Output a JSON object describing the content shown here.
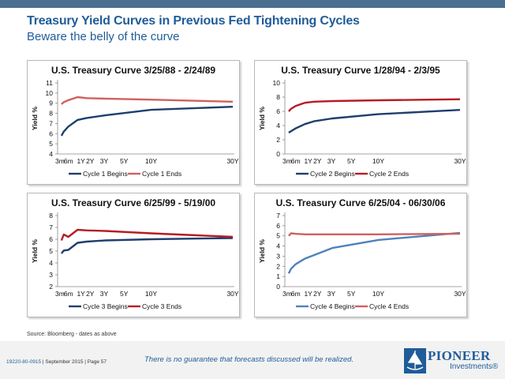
{
  "page": {
    "title": "Treasury Yield Curves in Previous Fed Tightening Cycles",
    "subtitle": "Beware the belly of the curve",
    "source": "Source: Bloomberg - dates as above",
    "disclaimer": "There is no guarantee that forecasts discussed will be realized.",
    "doc_code": "19220-80-0915",
    "date_page": " | September 2015 | Page 57",
    "logo": {
      "name": "PIONEER",
      "sub": "Investments",
      "mark": "®"
    }
  },
  "chart_data": [
    {
      "type": "line",
      "title": "U.S. Treasury Curve 3/25/88 - 2/24/89",
      "ylabel": "Yield %",
      "x": [
        0.25,
        0.5,
        1,
        2,
        3,
        5,
        10,
        30
      ],
      "xticks": [
        {
          "x": 0.25,
          "label": "3m"
        },
        {
          "x": 0.5,
          "label": "6m"
        },
        {
          "x": 1,
          "label": "1Y"
        },
        {
          "x": 2,
          "label": "2Y"
        },
        {
          "x": 3,
          "label": "3Y"
        },
        {
          "x": 5,
          "label": "5Y"
        },
        {
          "x": 10,
          "label": "10Y"
        },
        {
          "x": 30,
          "label": "30Y"
        }
      ],
      "ylim": [
        4,
        11
      ],
      "yticks": [
        4,
        5,
        6,
        7,
        8,
        9,
        10,
        11
      ],
      "series": [
        {
          "name": "Cycle 1 Begins",
          "color": "#1f3f6e",
          "values": [
            5.8,
            6.2,
            6.7,
            7.35,
            7.55,
            7.8,
            8.35,
            8.65
          ]
        },
        {
          "name": "Cycle 1 Ends",
          "color": "#d06060",
          "values": [
            8.9,
            9.1,
            9.3,
            9.6,
            9.5,
            9.45,
            9.35,
            9.15
          ]
        }
      ],
      "legend": "bottom"
    },
    {
      "type": "line",
      "title": "U.S. Treasury Curve 1/28/94 - 2/3/95",
      "ylabel": "Yield %",
      "x": [
        0.25,
        0.5,
        1,
        2,
        3,
        5,
        10,
        30
      ],
      "xticks": [
        {
          "x": 0.25,
          "label": "3m"
        },
        {
          "x": 0.5,
          "label": "6m"
        },
        {
          "x": 1,
          "label": "1Y"
        },
        {
          "x": 2,
          "label": "2Y"
        },
        {
          "x": 3,
          "label": "3Y"
        },
        {
          "x": 5,
          "label": "5Y"
        },
        {
          "x": 10,
          "label": "10Y"
        },
        {
          "x": 30,
          "label": "30Y"
        }
      ],
      "ylim": [
        0,
        10
      ],
      "yticks": [
        0,
        2,
        4,
        6,
        8,
        10
      ],
      "series": [
        {
          "name": "Cycle 2 Begins",
          "color": "#1f3f6e",
          "values": [
            3.0,
            3.2,
            3.6,
            4.2,
            4.6,
            5.0,
            5.6,
            6.2
          ]
        },
        {
          "name": "Cycle 2 Ends",
          "color": "#b51d24",
          "values": [
            6.0,
            6.35,
            6.75,
            7.2,
            7.35,
            7.45,
            7.55,
            7.7
          ]
        }
      ],
      "legend": "bottom"
    },
    {
      "type": "line",
      "title": "U.S. Treasury Curve 6/25/99 - 5/19/00",
      "ylabel": "Yield %",
      "x": [
        0.25,
        0.5,
        1,
        2,
        3,
        5,
        10,
        30
      ],
      "xticks": [
        {
          "x": 0.25,
          "label": "3m"
        },
        {
          "x": 0.5,
          "label": "6m"
        },
        {
          "x": 1,
          "label": "1Y"
        },
        {
          "x": 2,
          "label": "2Y"
        },
        {
          "x": 3,
          "label": "3Y"
        },
        {
          "x": 5,
          "label": "5Y"
        },
        {
          "x": 10,
          "label": "10Y"
        },
        {
          "x": 30,
          "label": "30Y"
        }
      ],
      "ylim": [
        2,
        8
      ],
      "yticks": [
        2,
        3,
        4,
        5,
        6,
        7,
        8
      ],
      "series": [
        {
          "name": "Cycle 3 Begins",
          "color": "#1f3f6e",
          "values": [
            4.8,
            5.05,
            5.1,
            5.7,
            5.8,
            5.9,
            6.0,
            6.1
          ]
        },
        {
          "name": "Cycle 3 Ends",
          "color": "#b51d24",
          "values": [
            5.9,
            6.4,
            6.2,
            6.8,
            6.75,
            6.7,
            6.5,
            6.2
          ]
        }
      ],
      "legend": "bottom"
    },
    {
      "type": "line",
      "title": "U.S. Treasury Curve 6/25/04 - 06/30/06",
      "ylabel": "Yield %",
      "x": [
        0.25,
        0.5,
        1,
        2,
        3,
        5,
        10,
        30
      ],
      "xticks": [
        {
          "x": 0.25,
          "label": "3m"
        },
        {
          "x": 0.5,
          "label": "6m"
        },
        {
          "x": 1,
          "label": "1Y"
        },
        {
          "x": 2,
          "label": "2Y"
        },
        {
          "x": 3,
          "label": "3Y"
        },
        {
          "x": 5,
          "label": "5Y"
        },
        {
          "x": 10,
          "label": "10Y"
        },
        {
          "x": 30,
          "label": "30Y"
        }
      ],
      "ylim": [
        0,
        7
      ],
      "yticks": [
        0,
        1,
        2,
        3,
        4,
        5,
        6,
        7
      ],
      "series": [
        {
          "name": "Cycle 4 Begins",
          "color": "#4f81bd",
          "values": [
            1.3,
            1.75,
            2.2,
            2.75,
            3.1,
            3.8,
            4.6,
            5.3
          ]
        },
        {
          "name": "Cycle 4 Ends",
          "color": "#d06060",
          "values": [
            5.0,
            5.25,
            5.2,
            5.15,
            5.15,
            5.15,
            5.15,
            5.2
          ]
        }
      ],
      "legend": "bottom"
    }
  ]
}
